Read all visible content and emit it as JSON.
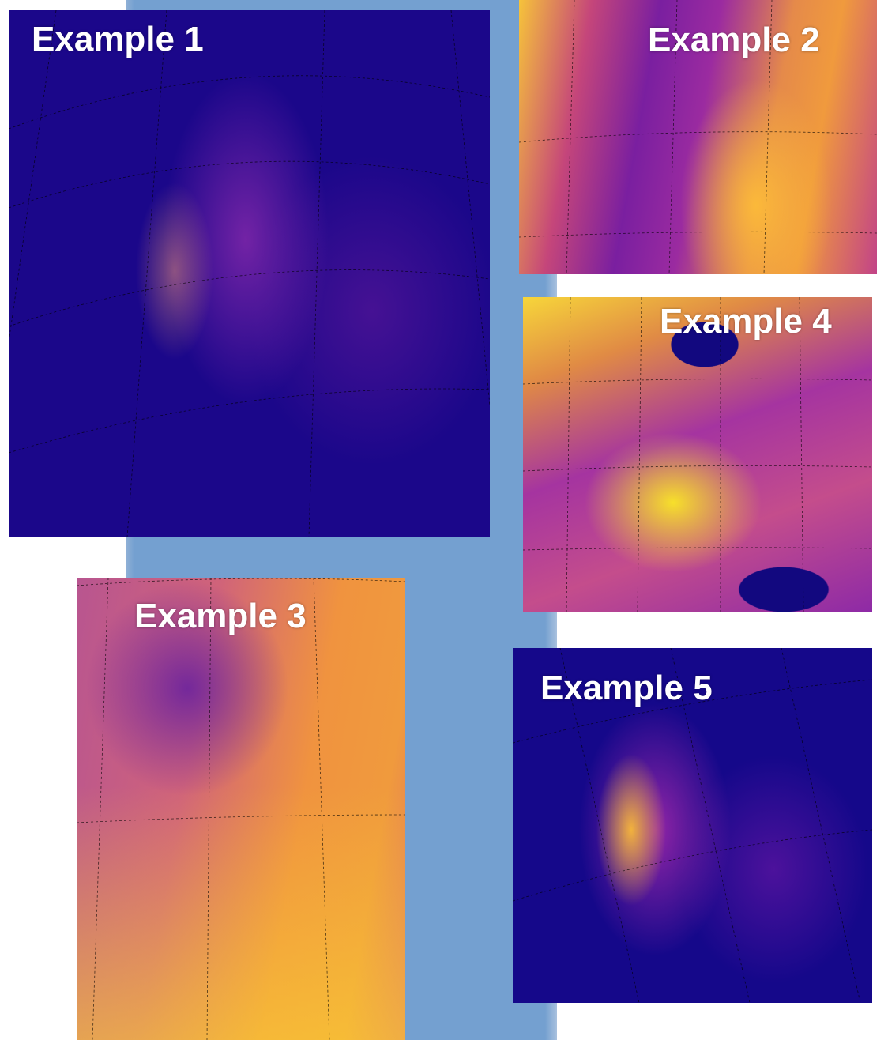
{
  "panels": [
    {
      "label": "Example 1"
    },
    {
      "label": "Example 2"
    },
    {
      "label": "Example 3"
    },
    {
      "label": "Example 4"
    },
    {
      "label": "Example 5"
    }
  ]
}
